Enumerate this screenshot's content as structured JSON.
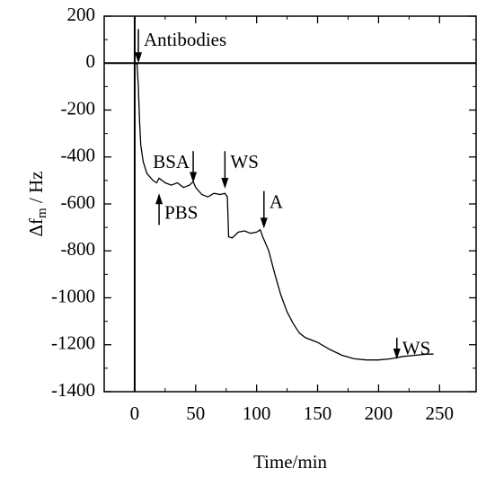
{
  "chart_data": {
    "type": "line",
    "xlabel": "Time/min",
    "ylabel": [
      "Δf",
      "m",
      " / Hz"
    ],
    "x": [
      0,
      2,
      3,
      4,
      5,
      7,
      10,
      15,
      18,
      20,
      25,
      30,
      35,
      40,
      45,
      48,
      50,
      55,
      60,
      65,
      70,
      74,
      76,
      77,
      80,
      85,
      90,
      95,
      100,
      103,
      105,
      110,
      115,
      120,
      125,
      130,
      135,
      140,
      150,
      160,
      170,
      180,
      190,
      200,
      210,
      220,
      230,
      240,
      245
    ],
    "series": [
      {
        "color": "#000000",
        "values": [
          0,
          -5,
          -100,
          -250,
          -350,
          -420,
          -470,
          -500,
          -510,
          -490,
          -510,
          -520,
          -510,
          -530,
          -520,
          -505,
          -530,
          -560,
          -570,
          -555,
          -560,
          -555,
          -570,
          -740,
          -745,
          -720,
          -715,
          -725,
          -720,
          -710,
          -740,
          -800,
          -900,
          -990,
          -1060,
          -1110,
          -1150,
          -1170,
          -1190,
          -1220,
          -1245,
          -1260,
          -1265,
          -1265,
          -1260,
          -1250,
          -1245,
          -1240,
          -1240
        ]
      }
    ],
    "xlim": [
      -25,
      280
    ],
    "xticks": [
      0,
      50,
      100,
      150,
      200,
      250
    ],
    "ylim": [
      -1400,
      200
    ],
    "yticks": [
      200,
      0,
      -200,
      -400,
      -600,
      -800,
      -1000,
      -1200,
      -1400
    ],
    "hlines": [
      0
    ],
    "vlines": [
      0
    ],
    "annotations": [
      {
        "text": "Antibodies",
        "x": 3,
        "from": 145,
        "to": 0,
        "side": "right"
      },
      {
        "text": "PBS",
        "x": 20,
        "from": -690,
        "to": -555,
        "side": "right"
      },
      {
        "text": "BSA",
        "x": 48,
        "from": -375,
        "to": -510,
        "side": "left"
      },
      {
        "text": "WS",
        "x": 74,
        "from": -375,
        "to": -535,
        "side": "right"
      },
      {
        "text": "A",
        "x": 106,
        "from": -545,
        "to": -705,
        "side": "right"
      },
      {
        "text": "WS",
        "x": 215,
        "from": -1170,
        "to": -1262,
        "side": "right"
      }
    ]
  }
}
